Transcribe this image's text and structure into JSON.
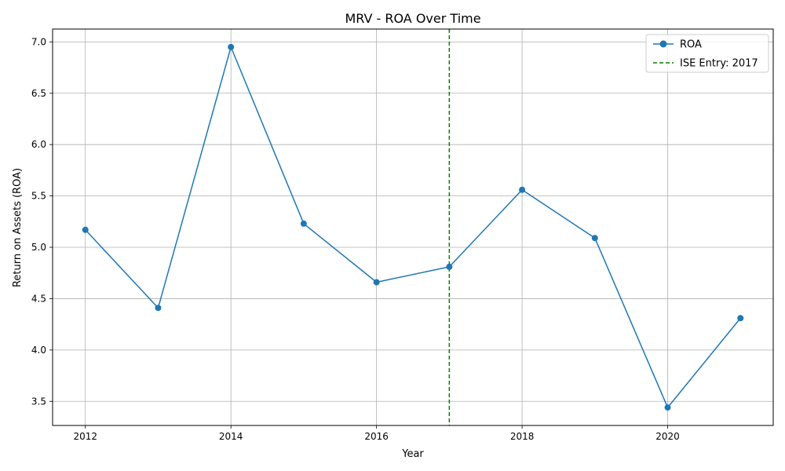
{
  "chart_data": {
    "type": "line",
    "title": "MRV - ROA Over Time",
    "xlabel": "Year",
    "ylabel": "Return on Assets (ROA)",
    "x": [
      2012,
      2013,
      2014,
      2015,
      2016,
      2017,
      2018,
      2019,
      2020,
      2021
    ],
    "series": [
      {
        "name": "ROA",
        "values": [
          5.17,
          4.41,
          6.95,
          5.23,
          4.66,
          4.81,
          5.56,
          5.09,
          3.44,
          4.31
        ],
        "color": "#1f77b4",
        "marker": "circle"
      }
    ],
    "vline": {
      "x": 2017,
      "label": "ISE Entry: 2017",
      "color": "#008000",
      "style": "dashed"
    },
    "xlim": [
      2011.55,
      2021.45
    ],
    "ylim": [
      3.265,
      7.125
    ],
    "xticks": [
      2012,
      2014,
      2016,
      2018,
      2020
    ],
    "yticks": [
      3.5,
      4.0,
      4.5,
      5.0,
      5.5,
      6.0,
      6.5,
      7.0
    ],
    "grid": true,
    "legend_position": "top-right"
  }
}
